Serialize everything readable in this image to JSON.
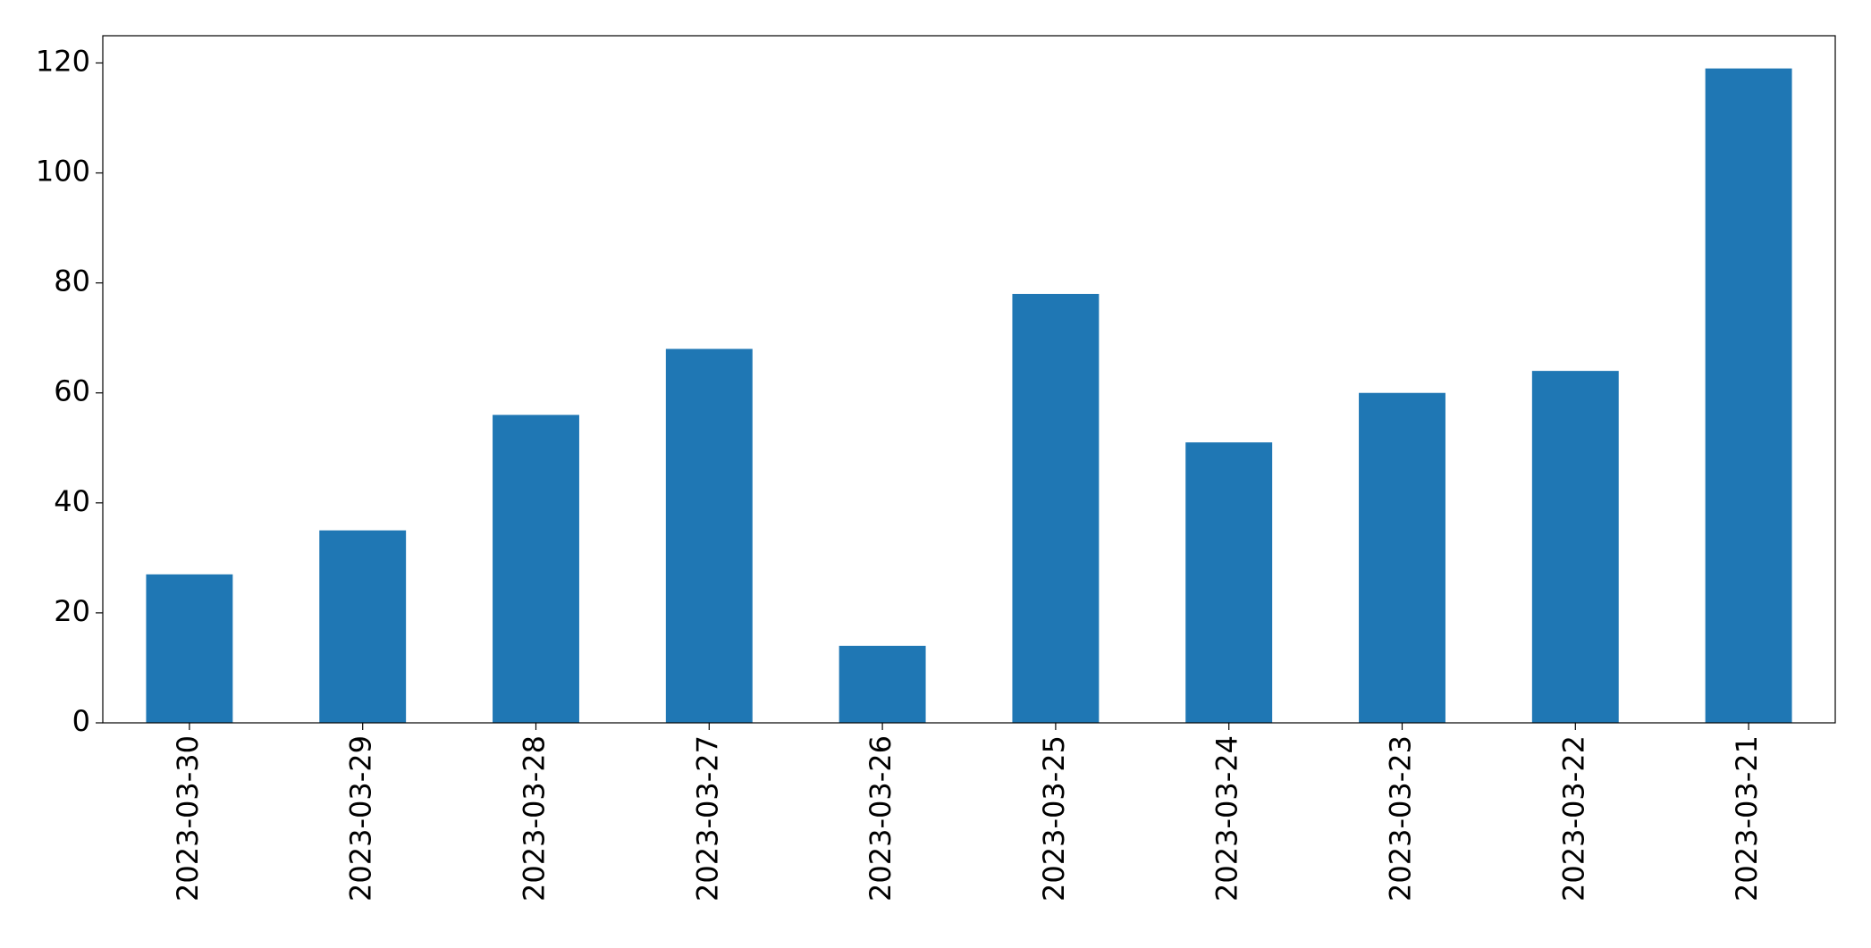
{
  "chart_data": {
    "type": "bar",
    "categories": [
      "2023-03-30",
      "2023-03-29",
      "2023-03-28",
      "2023-03-27",
      "2023-03-26",
      "2023-03-25",
      "2023-03-24",
      "2023-03-23",
      "2023-03-22",
      "2023-03-21"
    ],
    "values": [
      27,
      35,
      56,
      68,
      14,
      78,
      51,
      60,
      64,
      119
    ],
    "color": "#1f77b4",
    "ylim": [
      0,
      124.95
    ],
    "yticks": [
      0,
      20,
      40,
      60,
      80,
      100,
      120
    ],
    "grid": false
  }
}
